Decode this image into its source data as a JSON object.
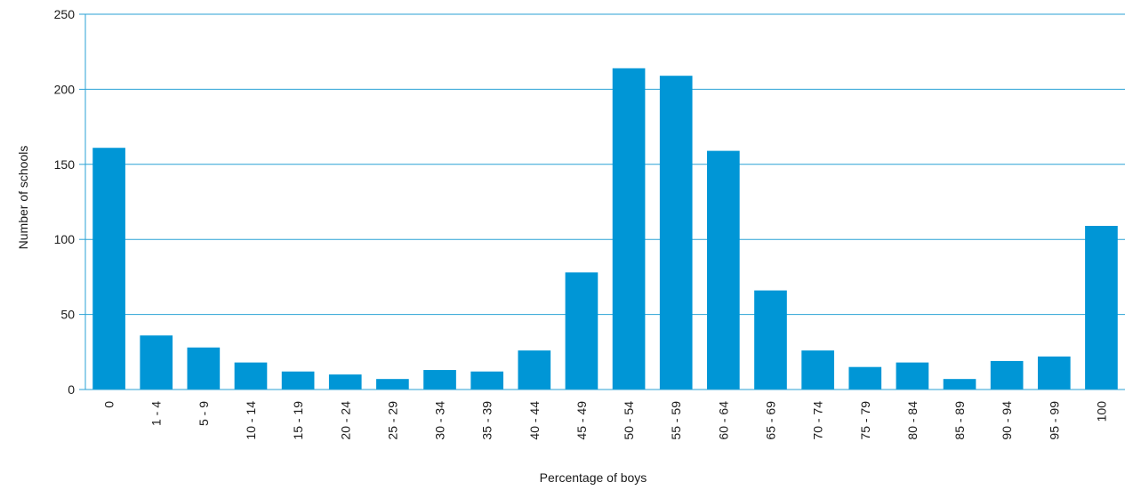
{
  "chart_data": {
    "type": "bar",
    "categories": [
      "0",
      "1 - 4",
      "5 - 9",
      "10 - 14",
      "15 - 19",
      "20 - 24",
      "25 - 29",
      "30 - 34",
      "35 - 39",
      "40 - 44",
      "45 - 49",
      "50 - 54",
      "55 - 59",
      "60 - 64",
      "65 - 69",
      "70 - 74",
      "75 - 79",
      "80 - 84",
      "85 - 89",
      "90 - 94",
      "95 - 99",
      "100"
    ],
    "values": [
      161,
      36,
      28,
      18,
      12,
      10,
      7,
      13,
      12,
      26,
      78,
      214,
      209,
      159,
      66,
      26,
      15,
      18,
      7,
      19,
      22,
      109
    ],
    "title": "",
    "xlabel": "Percentage of boys",
    "ylabel": "Number of schools",
    "ylim": [
      0,
      250
    ],
    "yticks": [
      "0",
      "50",
      "100",
      "150",
      "200",
      "250"
    ],
    "grid": true,
    "legend": "none",
    "bar_color": "#0096d6",
    "grid_color": "#2aa2d6"
  }
}
